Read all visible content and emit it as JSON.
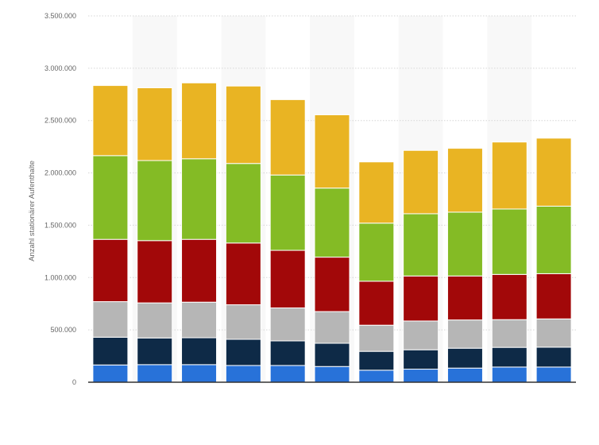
{
  "chart_data": {
    "type": "bar",
    "stacked": true,
    "ylabel": "Anzahl stationärer Aufenthalte",
    "xlabel": "",
    "categories": [
      "",
      "",
      "",
      "",
      "",
      "",
      "",
      "",
      "",
      "",
      ""
    ],
    "ylim": [
      0,
      3500000
    ],
    "yticks": [
      0,
      500000,
      1000000,
      1500000,
      2000000,
      2500000,
      3000000,
      3500000
    ],
    "ytick_labels": [
      "0",
      "500.000",
      "1.000.000",
      "1.500.000",
      "2.000.000",
      "2.500.000",
      "3.000.000",
      "3.500.000"
    ],
    "grid": true,
    "legend": "none",
    "series": [
      {
        "color": "#2872d9",
        "values": [
          165000,
          168000,
          168000,
          160000,
          160000,
          150000,
          115000,
          125000,
          135000,
          145000,
          145000
        ]
      },
      {
        "color": "#0e2a47",
        "values": [
          265000,
          255000,
          257000,
          250000,
          235000,
          222000,
          180000,
          185000,
          190000,
          188000,
          190000
        ]
      },
      {
        "color": "#b6b6b6",
        "values": [
          340000,
          335000,
          340000,
          330000,
          315000,
          303000,
          250000,
          275000,
          270000,
          265000,
          270000
        ]
      },
      {
        "color": "#a20809",
        "values": [
          595000,
          595000,
          600000,
          590000,
          550000,
          520000,
          420000,
          430000,
          420000,
          432000,
          432000
        ]
      },
      {
        "color": "#84bb25",
        "values": [
          800000,
          765000,
          770000,
          760000,
          720000,
          660000,
          555000,
          595000,
          610000,
          625000,
          645000
        ]
      },
      {
        "color": "#e9b423",
        "values": [
          670000,
          695000,
          725000,
          740000,
          720000,
          700000,
          585000,
          605000,
          610000,
          640000,
          650000
        ]
      }
    ]
  }
}
